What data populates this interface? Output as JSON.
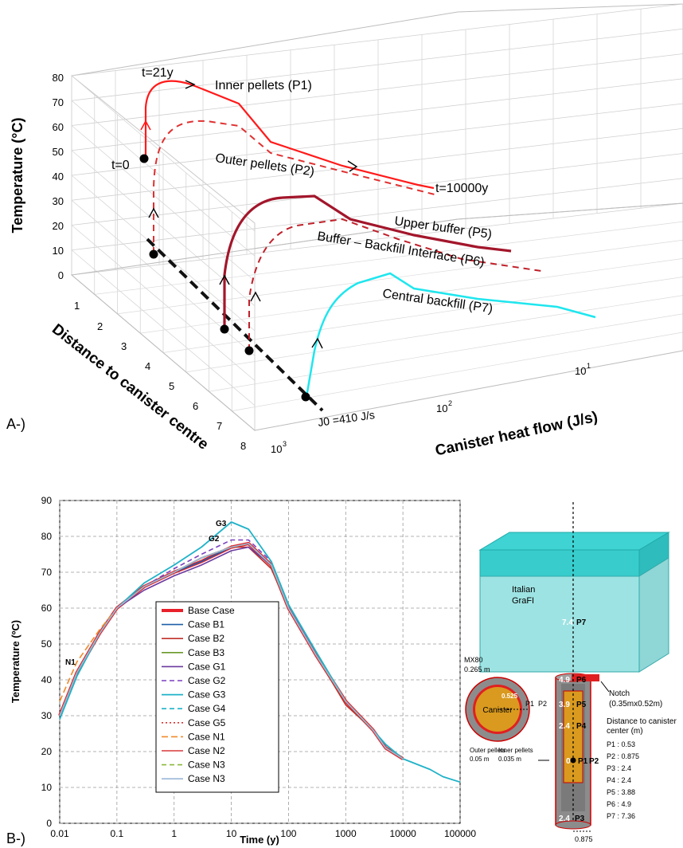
{
  "panelA": {
    "label": "A-)",
    "z_label": "Temperature (°C)",
    "z_ticks": [
      "0",
      "10",
      "20",
      "30",
      "40",
      "50",
      "60",
      "70",
      "80"
    ],
    "y_label": "Distance to canister centre",
    "y_ticks": [
      "1",
      "2",
      "3",
      "4",
      "5",
      "6",
      "7",
      "8"
    ],
    "x_label": "Canister heat flow (J/s)",
    "x_ticks": [
      "10",
      "1",
      "10",
      "2",
      "10",
      "3"
    ],
    "curves": [
      {
        "name": "Inner pellets (P1)",
        "color": "#ff1a1a",
        "style": "solid"
      },
      {
        "name": "Outer pellets (P2)",
        "color": "#e03030",
        "style": "dashed"
      },
      {
        "name": "Upper buffer (P5)",
        "color": "#a3162b",
        "style": "solid"
      },
      {
        "name": "Buffer – Backfill Interface (P6)",
        "color": "#c0202a",
        "style": "dashed"
      },
      {
        "name": "Central backfill (P7)",
        "color": "#1fe6ee",
        "style": "solid"
      }
    ],
    "annotations": {
      "t21": "t=21y",
      "t0": "t=0",
      "t10000": "t=10000y",
      "j0": "J0 =410 J/s"
    }
  },
  "chart_data": {
    "type": "line",
    "title": "",
    "xlabel": "Time (y)",
    "ylabel": "Temperature (ºC)",
    "xscale": "log",
    "xlim": [
      0.01,
      100000
    ],
    "ylim": [
      0,
      90
    ],
    "x_ticks": [
      "0.01",
      "0.1",
      "1",
      "10",
      "100",
      "1000",
      "10000",
      "100000"
    ],
    "y_ticks": [
      "0",
      "10",
      "20",
      "30",
      "40",
      "50",
      "60",
      "70",
      "80",
      "90"
    ],
    "x": [
      0.01,
      0.02,
      0.05,
      0.1,
      0.3,
      1,
      3,
      10,
      20,
      50,
      100,
      300,
      1000,
      3000,
      5000,
      10000,
      30000,
      50000,
      100000
    ],
    "series": [
      {
        "name": "Base Case",
        "color": "#e8202a",
        "dash": "",
        "width": 4,
        "values": [
          30,
          42,
          53,
          60,
          66,
          70,
          73,
          77,
          78,
          72,
          60,
          47,
          34,
          26,
          21,
          18,
          null,
          null,
          null
        ]
      },
      {
        "name": "Case B1",
        "color": "#1f5fa8",
        "dash": "",
        "width": 1.6,
        "values": [
          30,
          42,
          53,
          60,
          66,
          70,
          73,
          77,
          78,
          72,
          60,
          47,
          34,
          26,
          21,
          18,
          null,
          null,
          null
        ]
      },
      {
        "name": "Case B2",
        "color": "#c0302a",
        "dash": "",
        "width": 1.6,
        "values": [
          30,
          42,
          53,
          60,
          66,
          70,
          74,
          77,
          77,
          71,
          60,
          47,
          33,
          26,
          21,
          18,
          null,
          null,
          null
        ]
      },
      {
        "name": "Case B3",
        "color": "#6a9a2a",
        "dash": "",
        "width": 1.6,
        "values": [
          30,
          42,
          53,
          60,
          66,
          70,
          74,
          77,
          78,
          72,
          60,
          47,
          34,
          26,
          21,
          18,
          null,
          null,
          null
        ]
      },
      {
        "name": "Case G1",
        "color": "#6b3a9e",
        "dash": "",
        "width": 1.6,
        "values": [
          30,
          42,
          53,
          60,
          65,
          69,
          72,
          76,
          77,
          72,
          60,
          47,
          34,
          26,
          21,
          18,
          null,
          null,
          null
        ]
      },
      {
        "name": "Case G2",
        "color": "#7a3fbf",
        "dash": "6,4",
        "width": 1.6,
        "values": [
          30,
          42,
          53,
          60,
          66,
          71,
          75,
          79,
          79,
          73,
          61,
          47,
          34,
          26,
          21,
          18,
          null,
          null,
          null
        ]
      },
      {
        "name": "Case G3",
        "color": "#1fb2c8",
        "dash": "",
        "width": 1.8,
        "values": [
          29,
          41,
          53,
          60,
          67,
          72,
          77,
          84,
          82,
          73,
          61,
          48,
          34,
          26,
          22,
          18,
          15,
          13,
          11.5
        ]
      },
      {
        "name": "Case G4",
        "color": "#1fb2c8",
        "dash": "6,4",
        "width": 1.6,
        "values": [
          30,
          42,
          53,
          60,
          66,
          70,
          74,
          77,
          78,
          72,
          60,
          47,
          34,
          26,
          21,
          18,
          null,
          null,
          null
        ]
      },
      {
        "name": "Case G5",
        "color": "#e03030",
        "dash": "2,3",
        "width": 1.6,
        "values": [
          30,
          42,
          53,
          60,
          66,
          70,
          74,
          77,
          78,
          72,
          60,
          47,
          34,
          26,
          21,
          18,
          null,
          null,
          null
        ]
      },
      {
        "name": "Case N1",
        "color": "#f08a2a",
        "dash": "8,4",
        "width": 1.6,
        "values": [
          34,
          45,
          54,
          60,
          66,
          70,
          74,
          77,
          78,
          72,
          60,
          47,
          34,
          26,
          21,
          18,
          null,
          null,
          null
        ]
      },
      {
        "name": "Case N2",
        "color": "#d83a3a",
        "dash": "",
        "width": 1.6,
        "values": [
          30,
          42,
          53,
          60,
          66,
          70,
          74,
          77,
          78,
          72,
          60,
          47,
          34,
          26,
          21,
          18,
          null,
          null,
          null
        ]
      },
      {
        "name": "Case N3",
        "color": "#8ab83a",
        "dash": "6,4",
        "width": 1.6,
        "values": [
          30,
          42,
          53,
          60,
          66,
          70,
          74,
          77,
          78,
          72,
          60,
          47,
          34,
          26,
          21,
          18,
          null,
          null,
          null
        ]
      },
      {
        "name": "Case N3",
        "color": "#9ab8d8",
        "dash": "",
        "width": 1.6,
        "values": [
          30,
          42,
          53,
          60,
          66,
          70,
          74,
          77,
          78,
          72,
          60,
          47,
          34,
          26,
          21,
          18,
          null,
          null,
          null
        ]
      }
    ],
    "annotations": [
      "G3",
      "G2",
      "N1"
    ]
  },
  "panelB": {
    "label": "B-)",
    "schematic": {
      "italian": "Italian",
      "grafi": "GraFI",
      "mx80": "MX80",
      "mx80_thick": "0.265 m",
      "canister": "Canister",
      "inner_radius": "0.525",
      "outer_pellets": "Outer pellets",
      "outer_thick": "0.05 m",
      "inner_pellets": "Inner pellets",
      "inner_thick": "0.035 m",
      "notch": "Notch",
      "notch_dim": "(0.35mx0.52m)",
      "dist_title1": "Distance to canister",
      "dist_title2": "center (m)",
      "distances": [
        "P1 : 0.53",
        "P2 : 0.875",
        "P3 :  2.4",
        "P4 : 2.4",
        "P5 : 3.88",
        "P6 : 4.9",
        "P7 : 7.36"
      ],
      "scale": "0.875",
      "p_labels": [
        "P1",
        "P2",
        "P3",
        "P4",
        "P5",
        "P6",
        "P7"
      ],
      "p_vals": [
        "7.4",
        "4.9",
        "3.9",
        "2.4",
        "0",
        "2.4"
      ]
    }
  }
}
